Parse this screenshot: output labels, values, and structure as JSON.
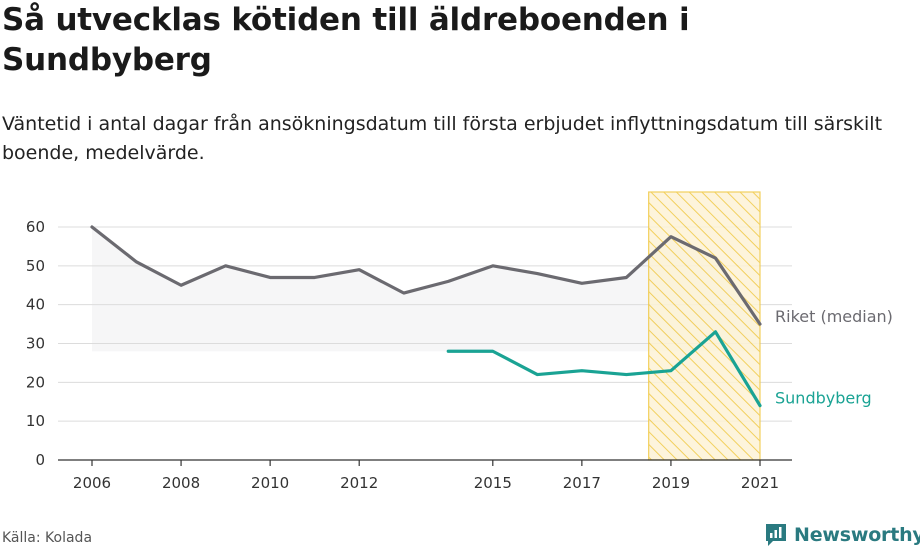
{
  "header": {
    "title": "Så utvecklas kötiden till äldreboenden i Sundbyberg",
    "subtitle": "Väntetid i antal dagar från ansökningsdatum till första erbjudet inflyttningsdatum till särskilt boende, medelvärde."
  },
  "footer": {
    "source": "Källa: Kolada",
    "brand": "Newsworthy",
    "brand_icon": "newsworthy-logo-icon"
  },
  "colors": {
    "riket": "#6b6a70",
    "sundbyberg": "#1aa394",
    "band_fill": "#f6f6f7",
    "highlight_stroke": "#f0c842",
    "highlight_fill": "#fdf3d6",
    "grid": "#dcdcdc",
    "brand": "#2a7a80"
  },
  "chart_data": {
    "type": "line",
    "title": "Så utvecklas kötiden till äldreboenden i Sundbyberg",
    "xlabel": "",
    "ylabel": "",
    "xlim": [
      2006,
      2021
    ],
    "ylim": [
      0,
      60
    ],
    "yticks": [
      0,
      10,
      20,
      30,
      40,
      50,
      60
    ],
    "xticks": [
      2006,
      2008,
      2010,
      2012,
      2015,
      2017,
      2019,
      2021
    ],
    "grid": true,
    "legend": "direct-labels-right",
    "highlight_range": [
      2018.5,
      2021
    ],
    "series": [
      {
        "name": "Riket (median)",
        "x": [
          2006,
          2007,
          2008,
          2009,
          2010,
          2011,
          2012,
          2013,
          2014,
          2015,
          2016,
          2017,
          2018,
          2019,
          2020,
          2021
        ],
        "values": [
          60,
          51,
          45,
          50,
          47,
          47,
          49,
          43,
          46,
          50,
          48,
          45.5,
          47,
          57.5,
          52,
          35
        ],
        "band_lower": 28
      },
      {
        "name": "Sundbyberg",
        "x": [
          2014,
          2015,
          2016,
          2017,
          2018,
          2019,
          2020,
          2021
        ],
        "values": [
          28,
          28,
          22,
          23,
          22,
          23,
          33,
          14
        ]
      }
    ]
  }
}
